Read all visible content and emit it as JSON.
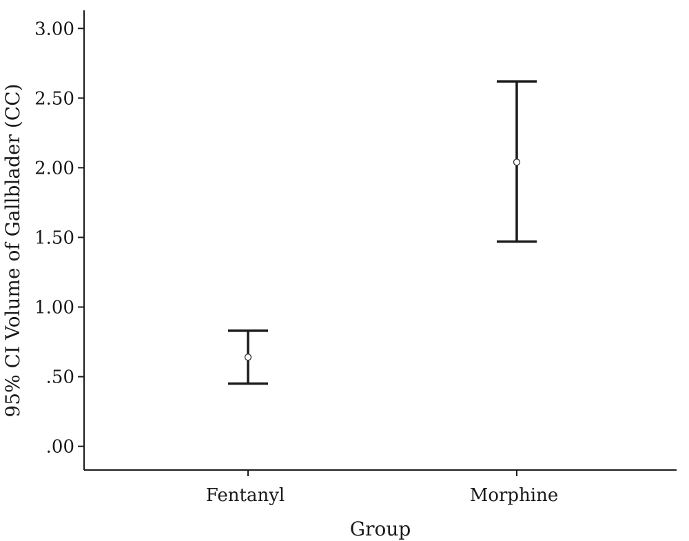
{
  "chart_data": {
    "type": "errorbar",
    "title": "",
    "xlabel": "Group",
    "ylabel": "95% CI Volume of Gallblader (CC)",
    "categories": [
      "Fentanyl",
      "Morphine"
    ],
    "points": [
      {
        "category": "Fentanyl",
        "mean": 0.64,
        "lower": 0.45,
        "upper": 0.83
      },
      {
        "category": "Morphine",
        "mean": 2.04,
        "lower": 1.47,
        "upper": 2.62
      }
    ],
    "ylim": [
      -0.17,
      3.13
    ],
    "yticks": [
      0,
      0.5,
      1,
      1.5,
      2,
      2.5,
      3
    ],
    "ytick_labels": [
      ".00",
      ".50",
      "1.00",
      "1.50",
      "2.00",
      "2.50",
      "3.00"
    ],
    "grid": false,
    "legend": "none"
  }
}
